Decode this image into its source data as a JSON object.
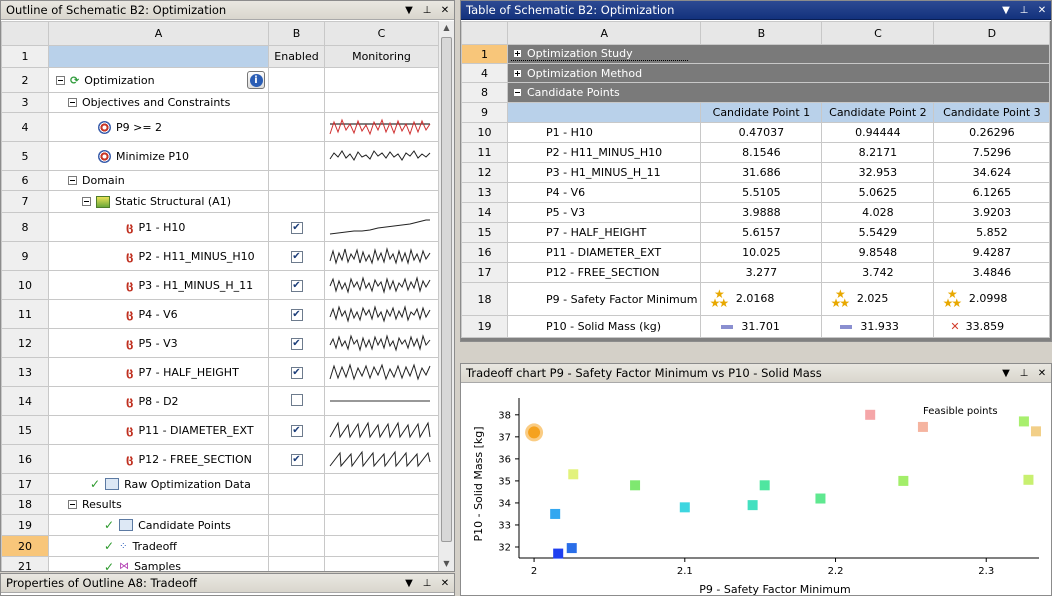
{
  "outline_panel": {
    "title": "Outline of Schematic B2: Optimization",
    "columns": [
      "A",
      "B",
      "C"
    ],
    "subheaders": {
      "b": "Enabled",
      "c": "Monitoring"
    },
    "rows": [
      {
        "num": "1",
        "label": ""
      },
      {
        "num": "2",
        "label": "Optimization"
      },
      {
        "num": "3",
        "label": "Objectives and Constraints"
      },
      {
        "num": "4",
        "label": "P9 >= 2"
      },
      {
        "num": "5",
        "label": "Minimize P10"
      },
      {
        "num": "6",
        "label": "Domain"
      },
      {
        "num": "7",
        "label": "Static Structural (A1)"
      },
      {
        "num": "8",
        "label": "P1 - H10"
      },
      {
        "num": "9",
        "label": "P2 - H11_MINUS_H10"
      },
      {
        "num": "10",
        "label": "P3 - H1_MINUS_H_11"
      },
      {
        "num": "11",
        "label": "P4 - V6"
      },
      {
        "num": "12",
        "label": "P5 - V3"
      },
      {
        "num": "13",
        "label": "P7 - HALF_HEIGHT"
      },
      {
        "num": "14",
        "label": "P8 - D2"
      },
      {
        "num": "15",
        "label": "P11 - DIAMETER_EXT"
      },
      {
        "num": "16",
        "label": "P12 - FREE_SECTION"
      },
      {
        "num": "17",
        "label": "Raw Optimization Data"
      },
      {
        "num": "18",
        "label": "Results"
      },
      {
        "num": "19",
        "label": "Candidate Points"
      },
      {
        "num": "20",
        "label": "Tradeoff"
      },
      {
        "num": "21",
        "label": "Samples"
      }
    ],
    "enabled": {
      "8": "✔",
      "9": "✔",
      "10": "✔",
      "11": "✔",
      "12": "✔",
      "13": "✔",
      "14": "",
      "15": "✔",
      "16": "✔"
    }
  },
  "properties_panel": {
    "title": "Properties of Outline A8: Tradeoff"
  },
  "table_panel": {
    "title": "Table of Schematic B2: Optimization",
    "columns": [
      "A",
      "B",
      "C",
      "D"
    ],
    "sections": [
      {
        "num": "1",
        "label": "Optimization Study"
      },
      {
        "num": "4",
        "label": "Optimization Method"
      },
      {
        "num": "8",
        "label": "Candidate Points"
      }
    ],
    "header_row": {
      "num": "9",
      "b": "Candidate Point 1",
      "c": "Candidate Point 2",
      "d": "Candidate Point 3"
    },
    "rows": [
      {
        "num": "10",
        "label": "P1 - H10",
        "b": "0.47037",
        "c": "0.94444",
        "d": "0.26296"
      },
      {
        "num": "11",
        "label": "P2 - H11_MINUS_H10",
        "b": "8.1546",
        "c": "8.2171",
        "d": "7.5296"
      },
      {
        "num": "12",
        "label": "P3 - H1_MINUS_H_11",
        "b": "31.686",
        "c": "32.953",
        "d": "34.624"
      },
      {
        "num": "13",
        "label": "P4 - V6",
        "b": "5.5105",
        "c": "5.0625",
        "d": "6.1265"
      },
      {
        "num": "14",
        "label": "P5 - V3",
        "b": "3.9888",
        "c": "4.028",
        "d": "3.9203"
      },
      {
        "num": "15",
        "label": "P7 - HALF_HEIGHT",
        "b": "5.6157",
        "c": "5.5429",
        "d": "5.852"
      },
      {
        "num": "16",
        "label": "P11 - DIAMETER_EXT",
        "b": "10.025",
        "c": "9.8548",
        "d": "9.4287"
      },
      {
        "num": "17",
        "label": "P12 - FREE_SECTION",
        "b": "3.277",
        "c": "3.742",
        "d": "3.4846"
      }
    ],
    "rating_row": {
      "num": "18",
      "label": "P9 - Safety Factor Minimum",
      "b": "2.0168",
      "c": "2.025",
      "d": "2.0998"
    },
    "mass_row": {
      "num": "19",
      "label": "P10 - Solid Mass (kg)",
      "b": "31.701",
      "c": "31.933",
      "d": "33.859"
    }
  },
  "chart_panel": {
    "title": "Tradeoff chart P9 - Safety Factor Minimum vs P10 - Solid Mass"
  },
  "chart_data": {
    "type": "scatter",
    "xlabel": "P9 - Safety Factor Minimum",
    "ylabel": "P10 - Solid Mass  [kg]",
    "xlim": [
      1.99,
      2.335
    ],
    "ylim": [
      31.5,
      38.4
    ],
    "xticks": [
      "2",
      "2.1",
      "2.2",
      "2.3"
    ],
    "yticks": [
      "32",
      "33",
      "34",
      "35",
      "36",
      "37",
      "38"
    ],
    "legend": "Feasible points",
    "points": [
      {
        "x": 2.016,
        "y": 31.7,
        "color": "#1f3ff0"
      },
      {
        "x": 2.025,
        "y": 31.95,
        "color": "#2a6ee8"
      },
      {
        "x": 2.014,
        "y": 33.5,
        "color": "#33a7f0"
      },
      {
        "x": 2.1,
        "y": 33.8,
        "color": "#3dd6e0"
      },
      {
        "x": 2.145,
        "y": 33.9,
        "color": "#43e0c0"
      },
      {
        "x": 2.153,
        "y": 34.8,
        "color": "#4fe6a0"
      },
      {
        "x": 2.067,
        "y": 34.8,
        "color": "#7fe870"
      },
      {
        "x": 2.19,
        "y": 34.2,
        "color": "#5fe890"
      },
      {
        "x": 2.245,
        "y": 35.0,
        "color": "#a3ee6a"
      },
      {
        "x": 2.328,
        "y": 35.05,
        "color": "#c8f070"
      },
      {
        "x": 2.026,
        "y": 35.3,
        "color": "#e2f27c"
      },
      {
        "x": 2.325,
        "y": 37.7,
        "color": "#a8ef6e"
      },
      {
        "x": 2.333,
        "y": 37.25,
        "color": "#f2cf88"
      },
      {
        "x": 2.258,
        "y": 37.45,
        "color": "#f5b4a0"
      },
      {
        "x": 2.223,
        "y": 38.0,
        "color": "#f5a6a8"
      }
    ],
    "highlight": {
      "x": 2.0,
      "y": 37.2,
      "color": "#f5a21e"
    }
  }
}
